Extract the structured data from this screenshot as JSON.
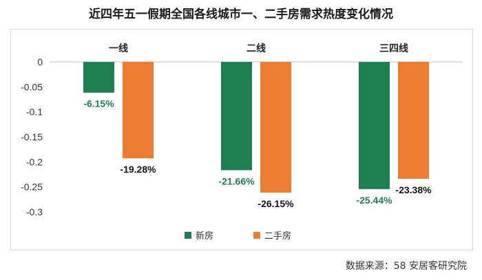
{
  "title": "近四年五一假期全国各线城市一、二手房需求热度变化情况",
  "source": "数据来源：58 安居客研究院",
  "colors": {
    "new": "#1e7f4f",
    "second": "#ed7d31",
    "new_label": "#1e7f4f",
    "second_label": "#111111"
  },
  "chart_data": {
    "type": "bar",
    "categories": [
      "一线",
      "二线",
      "三四线"
    ],
    "series": [
      {
        "name": "新房",
        "values": [
          -0.0615,
          -0.2166,
          -0.2544
        ],
        "labels": [
          "-6.15%",
          "-21.66%",
          "-25.44%"
        ]
      },
      {
        "name": "二手房",
        "values": [
          -0.1928,
          -0.2615,
          -0.2338
        ],
        "labels": [
          "-19.28%",
          "-26.15%",
          "-23.38%"
        ]
      }
    ],
    "ylim": [
      -0.3,
      0
    ],
    "yticks": [
      "0",
      "-0.05",
      "-0.1",
      "-0.15",
      "-0.2",
      "-0.25",
      "-0.3"
    ],
    "ytick_values": [
      0,
      -0.05,
      -0.1,
      -0.15,
      -0.2,
      -0.25,
      -0.3
    ],
    "legend_position": "bottom-center",
    "grid": false
  }
}
